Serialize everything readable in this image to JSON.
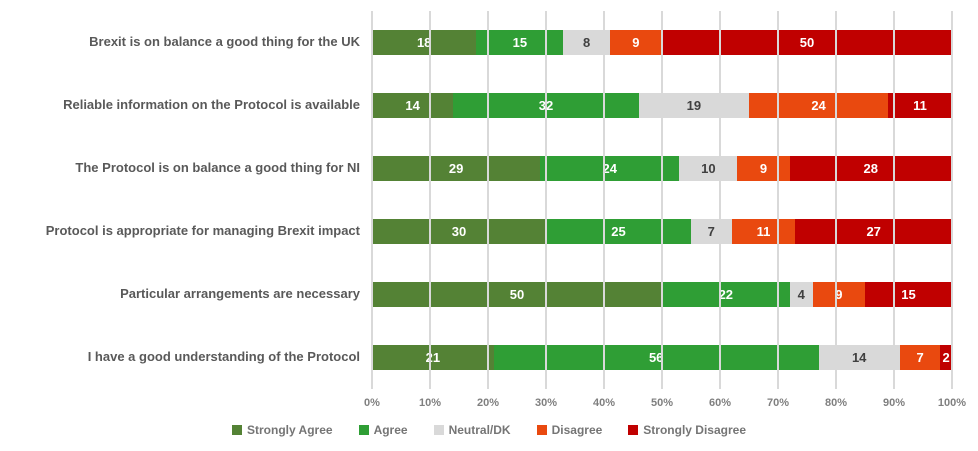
{
  "chart_data": {
    "type": "bar",
    "orientation": "horizontal",
    "stacked": true,
    "title": "",
    "xlabel": "",
    "ylabel": "",
    "xlim": [
      0,
      100
    ],
    "grid": true,
    "legend_position": "bottom",
    "x_ticks": [
      "0%",
      "10%",
      "20%",
      "30%",
      "40%",
      "50%",
      "60%",
      "70%",
      "80%",
      "90%",
      "100%"
    ],
    "categories": [
      "Brexit is on balance a good thing for the UK",
      "Reliable information on the Protocol is available",
      "The Protocol is on balance a good thing for NI",
      "Protocol is appropriate for managing Brexit impact",
      "Particular arrangements are necessary",
      "I have a good understanding of the Protocol"
    ],
    "series": [
      {
        "name": "Strongly Agree",
        "color": "#548235",
        "label_color": "#ffffff",
        "values": [
          18,
          14,
          29,
          30,
          50,
          21
        ]
      },
      {
        "name": "Agree",
        "color": "#2f9e35",
        "label_color": "#ffffff",
        "values": [
          15,
          32,
          24,
          25,
          22,
          56
        ]
      },
      {
        "name": "Neutral/DK",
        "color": "#d9d9d9",
        "label_color": "#404040",
        "values": [
          8,
          19,
          10,
          7,
          4,
          14
        ]
      },
      {
        "name": "Disagree",
        "color": "#e9490f",
        "label_color": "#ffffff",
        "values": [
          9,
          24,
          9,
          11,
          9,
          7
        ]
      },
      {
        "name": "Strongly Disagree",
        "color": "#c00000",
        "label_color": "#ffffff",
        "values": [
          50,
          11,
          28,
          27,
          15,
          2
        ]
      }
    ],
    "style": {
      "background_color": "#ffffff",
      "gridline_color": "#d9d9d9",
      "category_label_color": "#595959",
      "tick_label_color": "#7f7f7f",
      "legend_label_color": "#757575"
    }
  }
}
